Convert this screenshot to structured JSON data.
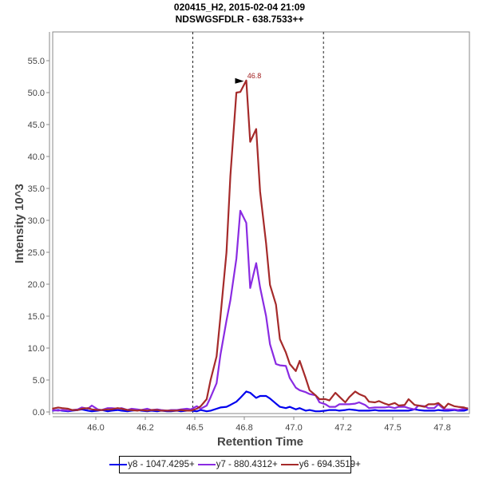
{
  "chart_data": {
    "type": "line",
    "title": "020415_H2, 2015-02-04 21:09",
    "subtitle": "NDSWGSFDLR - 638.7533++",
    "xlabel": "Retention Time",
    "ylabel": "Intensity 10^3",
    "xlim": [
      45.78,
      47.89
    ],
    "ylim": [
      0,
      59
    ],
    "x_ticks": [
      46.0,
      46.25,
      46.5,
      46.75,
      47.0,
      47.25,
      47.5,
      47.75
    ],
    "x_tick_labels": [
      "46.0",
      "46.2",
      "46.5",
      "46.8",
      "47.0",
      "47.2",
      "47.5",
      "47.8"
    ],
    "y_ticks": [
      0,
      5,
      10,
      15,
      20,
      25,
      30,
      35,
      40,
      45,
      50,
      55
    ],
    "y_tick_labels": [
      "0.0",
      "5.0",
      "10.0",
      "15.0",
      "20.0",
      "25.0",
      "30.0",
      "35.0",
      "40.0",
      "45.0",
      "50.0",
      "55.0"
    ],
    "grid": false,
    "vlines": [
      46.49,
      47.15
    ],
    "annotation": {
      "text": "46.8",
      "x": 46.76,
      "y": 51.9,
      "color": "#a01c1c"
    },
    "legend_position": "bottom",
    "series": [
      {
        "name": "y8 - 1047.4295+",
        "color": "#0000ee",
        "x": [
          45.78,
          45.81,
          45.83,
          45.86,
          45.88,
          45.91,
          45.93,
          45.96,
          45.98,
          46.01,
          46.03,
          46.06,
          46.08,
          46.11,
          46.13,
          46.16,
          46.18,
          46.21,
          46.23,
          46.26,
          46.28,
          46.31,
          46.33,
          46.36,
          46.38,
          46.41,
          46.43,
          46.46,
          46.48,
          46.51,
          46.53,
          46.56,
          46.58,
          46.61,
          46.63,
          46.66,
          46.68,
          46.71,
          46.73,
          46.76,
          46.78,
          46.81,
          46.83,
          46.86,
          46.88,
          46.91,
          46.93,
          46.96,
          46.98,
          47.01,
          47.03,
          47.06,
          47.08,
          47.11,
          47.13,
          47.16,
          47.18,
          47.21,
          47.23,
          47.26,
          47.28,
          47.31,
          47.33,
          47.36,
          47.38,
          47.41,
          47.43,
          47.46,
          47.48,
          47.51,
          47.53,
          47.56,
          47.58,
          47.61,
          47.63,
          47.66,
          47.68,
          47.71,
          47.73,
          47.76,
          47.78,
          47.81,
          47.83,
          47.86,
          47.88
        ],
        "y": [
          0.2,
          0.3,
          0.2,
          0.1,
          0.2,
          0.3,
          0.4,
          0.2,
          0.1,
          0.2,
          0.3,
          0.1,
          0.2,
          0.3,
          0.2,
          0.1,
          0.2,
          0.3,
          0.2,
          0.1,
          0.2,
          0.1,
          0.2,
          0.1,
          0.1,
          0.2,
          0.1,
          0.2,
          0.2,
          0.1,
          0.3,
          0.1,
          0.2,
          0.5,
          0.7,
          0.8,
          1.1,
          1.6,
          2.2,
          3.2,
          3.0,
          2.2,
          2.5,
          2.5,
          2.1,
          1.3,
          0.8,
          0.6,
          0.8,
          0.4,
          0.6,
          0.2,
          0.3,
          0.1,
          0.1,
          0.2,
          0.3,
          0.3,
          0.2,
          0.3,
          0.4,
          0.3,
          0.2,
          0.2,
          0.2,
          0.3,
          0.2,
          0.2,
          0.2,
          0.2,
          0.2,
          0.2,
          0.2,
          0.4,
          0.3,
          0.2,
          0.2,
          0.2,
          0.3,
          0.2,
          0.2,
          0.3,
          0.2,
          0.2,
          0.4
        ]
      },
      {
        "name": "y7 - 880.4312+",
        "color": "#8a2be2",
        "x": [
          45.78,
          45.81,
          45.83,
          45.86,
          45.88,
          45.91,
          45.93,
          45.96,
          45.98,
          46.01,
          46.03,
          46.06,
          46.08,
          46.11,
          46.13,
          46.16,
          46.18,
          46.21,
          46.23,
          46.26,
          46.28,
          46.31,
          46.33,
          46.36,
          46.38,
          46.41,
          46.43,
          46.46,
          46.48,
          46.51,
          46.53,
          46.56,
          46.58,
          46.61,
          46.63,
          46.66,
          46.68,
          46.71,
          46.73,
          46.76,
          46.78,
          46.81,
          46.83,
          46.86,
          46.88,
          46.91,
          46.93,
          46.96,
          46.98,
          47.01,
          47.03,
          47.06,
          47.08,
          47.11,
          47.13,
          47.16,
          47.18,
          47.21,
          47.23,
          47.26,
          47.28,
          47.31,
          47.33,
          47.36,
          47.38,
          47.41,
          47.43,
          47.46,
          47.48,
          47.51,
          47.53,
          47.56,
          47.58,
          47.61,
          47.63,
          47.66,
          47.68,
          47.71,
          47.73,
          47.76,
          47.78,
          47.81,
          47.83,
          47.86,
          47.88
        ],
        "y": [
          0.3,
          0.2,
          0.3,
          0.2,
          0.3,
          0.4,
          0.7,
          0.5,
          1.0,
          0.4,
          0.3,
          0.6,
          0.6,
          0.5,
          0.6,
          0.3,
          0.5,
          0.4,
          0.3,
          0.5,
          0.3,
          0.4,
          0.3,
          0.2,
          0.3,
          0.3,
          0.4,
          0.5,
          0.4,
          0.9,
          0.5,
          1.0,
          2.3,
          4.5,
          9.0,
          14.3,
          17.5,
          24.0,
          31.5,
          29.6,
          19.4,
          23.3,
          19.5,
          15.0,
          10.6,
          7.5,
          7.3,
          7.2,
          5.3,
          3.8,
          3.4,
          3.1,
          2.8,
          2.6,
          1.5,
          1.2,
          0.8,
          0.8,
          1.2,
          1.2,
          1.2,
          1.3,
          1.5,
          1.1,
          0.6,
          0.7,
          0.7,
          0.7,
          0.8,
          0.6,
          0.8,
          0.8,
          0.6,
          0.4,
          1.0,
          0.9,
          0.6,
          0.6,
          1.2,
          0.4,
          0.4,
          0.4,
          0.3,
          0.5,
          0.6
        ]
      },
      {
        "name": "y6 - 694.3519+",
        "color": "#a52a2a",
        "x": [
          45.78,
          45.81,
          45.83,
          45.86,
          45.88,
          45.91,
          45.93,
          45.96,
          45.98,
          46.01,
          46.03,
          46.06,
          46.08,
          46.11,
          46.13,
          46.16,
          46.18,
          46.21,
          46.23,
          46.26,
          46.28,
          46.31,
          46.33,
          46.36,
          46.38,
          46.41,
          46.43,
          46.46,
          46.48,
          46.51,
          46.53,
          46.56,
          46.58,
          46.61,
          46.63,
          46.66,
          46.68,
          46.71,
          46.73,
          46.76,
          46.78,
          46.81,
          46.83,
          46.86,
          46.88,
          46.91,
          46.93,
          46.96,
          46.98,
          47.01,
          47.03,
          47.06,
          47.08,
          47.11,
          47.13,
          47.16,
          47.18,
          47.21,
          47.23,
          47.26,
          47.28,
          47.31,
          47.33,
          47.36,
          47.38,
          47.41,
          47.43,
          47.46,
          47.48,
          47.51,
          47.53,
          47.56,
          47.58,
          47.61,
          47.63,
          47.66,
          47.68,
          47.71,
          47.73,
          47.76,
          47.78,
          47.81,
          47.83,
          47.86,
          47.88
        ],
        "y": [
          0.5,
          0.7,
          0.6,
          0.5,
          0.3,
          0.3,
          0.5,
          0.6,
          0.4,
          0.3,
          0.3,
          0.4,
          0.4,
          0.6,
          0.5,
          0.3,
          0.3,
          0.2,
          0.3,
          0.2,
          0.3,
          0.3,
          0.2,
          0.2,
          0.2,
          0.2,
          0.3,
          0.2,
          0.2,
          0.5,
          0.9,
          2.0,
          5.0,
          8.7,
          15.0,
          25.0,
          37.0,
          50.0,
          50.1,
          51.9,
          42.3,
          44.3,
          34.5,
          26.4,
          19.9,
          16.8,
          11.4,
          9.3,
          7.5,
          6.4,
          8.0,
          5.3,
          3.4,
          2.6,
          2.0,
          2.0,
          1.8,
          3.0,
          2.4,
          1.5,
          2.3,
          3.2,
          2.8,
          2.4,
          1.6,
          1.5,
          1.7,
          1.3,
          1.1,
          1.4,
          1.0,
          1.1,
          2.0,
          1.1,
          1.0,
          0.8,
          1.2,
          1.2,
          1.4,
          0.6,
          1.3,
          0.9,
          0.8,
          0.7,
          0.5
        ]
      }
    ]
  }
}
